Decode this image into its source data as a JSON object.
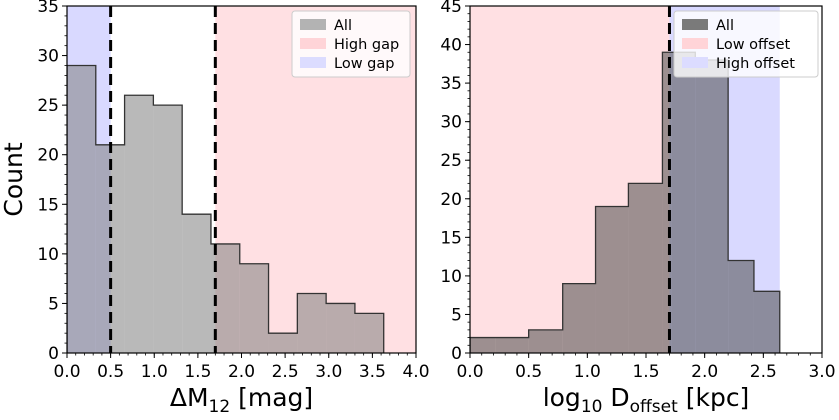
{
  "chart_data": [
    {
      "type": "bar",
      "subtype": "histogram",
      "xlabel": "ΔM",
      "xlabel_sub": "12",
      "xlabel_tail": " [mag]",
      "ylabel": "Count",
      "xlim": [
        0.0,
        4.0
      ],
      "ylim": [
        0,
        35
      ],
      "xticks": [
        0.0,
        0.5,
        1.0,
        1.5,
        2.0,
        2.5,
        3.0,
        3.5,
        4.0
      ],
      "xtick_labels": [
        "0.0",
        "0.5",
        "1.0",
        "1.5",
        "2.0",
        "2.5",
        "3.0",
        "3.5",
        "4.0"
      ],
      "yticks": [
        0,
        5,
        10,
        15,
        20,
        25,
        30,
        35
      ],
      "ytick_labels": [
        "0",
        "5",
        "10",
        "15",
        "20",
        "25",
        "30",
        "35"
      ],
      "bin_edges": [
        0.0,
        0.33,
        0.66,
        0.99,
        1.32,
        1.65,
        1.98,
        2.31,
        2.64,
        2.97,
        3.3,
        3.63
      ],
      "series": [
        {
          "name": "All",
          "values": [
            29,
            21,
            26,
            25,
            14,
            11,
            9,
            2,
            6,
            5,
            4
          ],
          "color": "#808080"
        }
      ],
      "regions": [
        {
          "name": "High gap",
          "from": 1.7,
          "to": 4.0,
          "color": "#ff9ea8"
        },
        {
          "name": "Low gap",
          "from": 0.0,
          "to": 0.5,
          "color": "#8a8aff"
        }
      ],
      "vlines": [
        0.5,
        1.7
      ],
      "legend": {
        "placement": "top-right",
        "entries": [
          {
            "label": "All",
            "color": "#b3b3b3"
          },
          {
            "label": "High gap",
            "color": "#ffd4d8"
          },
          {
            "label": "Low gap",
            "color": "#dcdcff"
          }
        ]
      }
    },
    {
      "type": "bar",
      "subtype": "histogram",
      "xlabel": "log",
      "xlabel_sub": "10",
      "xlabel_mid": " D",
      "xlabel_sub2": "offset",
      "xlabel_tail": " [kpc]",
      "ylabel": "",
      "xlim": [
        0.0,
        3.0
      ],
      "ylim": [
        0,
        45
      ],
      "xticks": [
        0.0,
        0.5,
        1.0,
        1.5,
        2.0,
        2.5,
        3.0
      ],
      "xtick_labels": [
        "0.0",
        "0.5",
        "1.0",
        "1.5",
        "2.0",
        "2.5",
        "3.0"
      ],
      "yticks": [
        0,
        5,
        10,
        15,
        20,
        25,
        30,
        35,
        40,
        45
      ],
      "ytick_labels": [
        "0",
        "5",
        "10",
        "15",
        "20",
        "25",
        "30",
        "35",
        "40",
        "45"
      ],
      "bin_edges": [
        0.0,
        0.22,
        0.5,
        0.79,
        1.07,
        1.35,
        1.64,
        1.72,
        1.92,
        2.2,
        2.42,
        2.64
      ],
      "series": [
        {
          "name": "All",
          "values": [
            2,
            2,
            3,
            9,
            19,
            22,
            39,
            39,
            38,
            12,
            8
          ],
          "color": "#4d4d4d"
        }
      ],
      "regions": [
        {
          "name": "Low offset",
          "from": 0.0,
          "to": 1.7,
          "color": "#ff9ea8"
        },
        {
          "name": "High offset",
          "from": 1.7,
          "to": 2.64,
          "color": "#8a8aff"
        }
      ],
      "vlines": [
        1.7
      ],
      "legend": {
        "placement": "top-left",
        "entries": [
          {
            "label": "All",
            "color": "#7a7a7a"
          },
          {
            "label": "Low offset",
            "color": "#ffd4d8"
          },
          {
            "label": "High offset",
            "color": "#dcdcff"
          }
        ]
      }
    }
  ]
}
